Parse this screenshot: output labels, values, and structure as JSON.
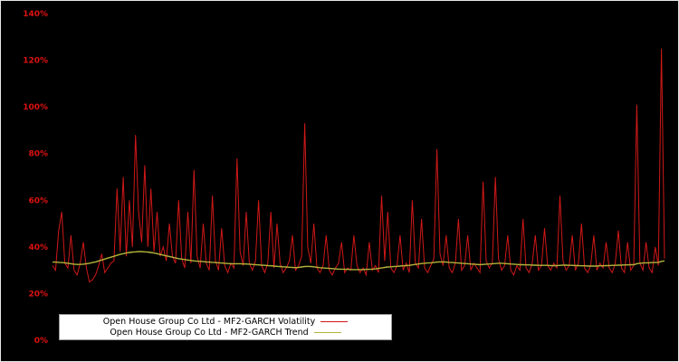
{
  "chart_data": {
    "type": "line",
    "title": "",
    "xlabel": "",
    "ylabel": "",
    "ylim": [
      0,
      140
    ],
    "grid": false,
    "legend_position": "lower-center",
    "background_color": "#000000",
    "yticks": {
      "values": [
        0,
        20,
        40,
        60,
        80,
        100,
        120,
        140
      ],
      "labels": [
        "0%",
        "20%",
        "40%",
        "60%",
        "80%",
        "100%",
        "120%",
        "140%"
      ],
      "color": "#dd1111"
    },
    "series": [
      {
        "name": "Open House Group Co Ltd - MF2-GARCH Volatility",
        "color": "#d01818",
        "values": [
          32,
          30,
          47,
          55,
          33,
          31,
          45,
          30,
          28,
          33,
          42,
          31,
          25,
          26,
          28,
          32,
          37,
          29,
          31,
          33,
          34,
          65,
          38,
          70,
          36,
          60,
          40,
          88,
          55,
          42,
          75,
          40,
          65,
          38,
          55,
          36,
          40,
          34,
          50,
          36,
          33,
          60,
          35,
          31,
          55,
          33,
          73,
          36,
          31,
          50,
          33,
          30,
          62,
          34,
          30,
          48,
          32,
          29,
          33,
          31,
          78,
          38,
          32,
          55,
          33,
          30,
          34,
          60,
          32,
          29,
          33,
          55,
          31,
          50,
          33,
          29,
          31,
          34,
          45,
          30,
          32,
          36,
          93,
          40,
          33,
          50,
          31,
          29,
          32,
          45,
          30,
          28,
          31,
          33,
          42,
          29,
          31,
          30,
          45,
          32,
          29,
          31,
          28,
          42,
          30,
          32,
          29,
          62,
          34,
          55,
          31,
          29,
          32,
          45,
          30,
          33,
          29,
          60,
          33,
          31,
          52,
          31,
          29,
          32,
          35,
          82,
          37,
          32,
          45,
          31,
          29,
          33,
          52,
          30,
          32,
          45,
          30,
          33,
          31,
          29,
          68,
          34,
          31,
          33,
          70,
          35,
          30,
          32,
          45,
          30,
          28,
          32,
          30,
          52,
          31,
          29,
          33,
          45,
          30,
          32,
          48,
          32,
          30,
          33,
          31,
          62,
          34,
          30,
          32,
          45,
          30,
          33,
          50,
          31,
          29,
          32,
          45,
          30,
          33,
          31,
          42,
          31,
          29,
          33,
          47,
          31,
          29,
          42,
          30,
          32,
          101,
          33,
          30,
          42,
          31,
          29,
          40,
          32,
          125,
          35
        ]
      },
      {
        "name": "Open House Group Co Ltd - MF2-GARCH Trend",
        "color": "#b3b33a",
        "values": [
          33.5,
          33.5,
          33.4,
          33.3,
          33.2,
          33.0,
          32.8,
          32.6,
          32.5,
          32.5,
          32.6,
          32.8,
          33.0,
          33.3,
          33.6,
          34.0,
          34.4,
          34.8,
          35.2,
          35.6,
          36.0,
          36.4,
          36.8,
          37.1,
          37.4,
          37.6,
          37.8,
          37.9,
          38.0,
          38.0,
          37.9,
          37.8,
          37.6,
          37.4,
          37.1,
          36.8,
          36.5,
          36.2,
          35.9,
          35.6,
          35.3,
          35.0,
          34.8,
          34.6,
          34.4,
          34.2,
          34.0,
          33.9,
          33.8,
          33.7,
          33.6,
          33.5,
          33.4,
          33.3,
          33.2,
          33.1,
          33.0,
          32.9,
          32.8,
          32.8,
          32.8,
          32.8,
          32.7,
          32.7,
          32.6,
          32.5,
          32.4,
          32.3,
          32.2,
          32.1,
          32.0,
          31.9,
          31.8,
          31.7,
          31.6,
          31.5,
          31.4,
          31.3,
          31.2,
          31.1,
          31.2,
          31.4,
          31.6,
          31.7,
          31.6,
          31.5,
          31.3,
          31.1,
          31.0,
          30.9,
          30.8,
          30.7,
          30.6,
          30.5,
          30.5,
          30.4,
          30.4,
          30.3,
          30.3,
          30.3,
          30.3,
          30.3,
          30.4,
          30.4,
          30.5,
          30.6,
          30.8,
          31.0,
          31.2,
          31.4,
          31.5,
          31.6,
          31.7,
          31.8,
          31.9,
          32.0,
          32.1,
          32.3,
          32.5,
          32.7,
          32.9,
          33.0,
          33.1,
          33.2,
          33.3,
          33.5,
          33.6,
          33.6,
          33.5,
          33.4,
          33.3,
          33.2,
          33.1,
          33.0,
          32.9,
          32.8,
          32.7,
          32.6,
          32.5,
          32.4,
          32.5,
          32.6,
          32.7,
          32.8,
          32.9,
          33.0,
          33.0,
          32.9,
          32.8,
          32.7,
          32.6,
          32.5,
          32.4,
          32.4,
          32.3,
          32.3,
          32.2,
          32.2,
          32.1,
          32.1,
          32.1,
          32.1,
          32.0,
          32.0,
          32.0,
          32.1,
          32.2,
          32.2,
          32.1,
          32.1,
          32.0,
          32.0,
          31.9,
          31.9,
          31.8,
          31.8,
          31.8,
          31.8,
          31.9,
          31.9,
          32.0,
          32.0,
          32.1,
          32.1,
          32.2,
          32.2,
          32.3,
          32.3,
          32.4,
          32.4,
          32.8,
          33.0,
          33.1,
          33.2,
          33.2,
          33.3,
          33.3,
          33.4,
          33.8,
          34.0
        ]
      }
    ]
  },
  "legend": {
    "items": [
      {
        "label": "Open House Group Co Ltd - MF2-GARCH Volatility",
        "color": "#d01818"
      },
      {
        "label": "Open House Group Co Ltd - MF2-GARCH Trend",
        "color": "#b3b33a"
      }
    ]
  }
}
